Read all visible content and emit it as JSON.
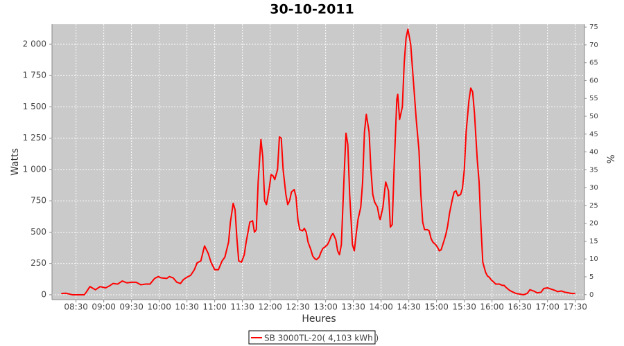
{
  "chart_data": {
    "type": "line",
    "title": "30-10-2011",
    "x_label": "Heures",
    "y_label": "Watts",
    "y2_label": "%",
    "x": [
      "08:14",
      "08:19",
      "08:26",
      "08:34",
      "08:39",
      "08:41",
      "08:45",
      "08:51",
      "08:56",
      "09:02",
      "09:06",
      "09:10",
      "09:15",
      "09:20",
      "09:25",
      "09:30",
      "09:35",
      "09:40",
      "09:45",
      "09:50",
      "09:55",
      "09:59",
      "10:02",
      "10:08",
      "10:11",
      "10:15",
      "10:19",
      "10:23",
      "10:26",
      "10:30",
      "10:34",
      "10:38",
      "10:41",
      "10:45",
      "10:49",
      "10:53",
      "10:56",
      "11:00",
      "11:04",
      "11:08",
      "11:11",
      "11:15",
      "11:17",
      "11:20",
      "11:22",
      "11:24",
      "11:26",
      "11:29",
      "11:32",
      "11:34",
      "11:36",
      "11:38",
      "11:41",
      "11:43",
      "11:45",
      "11:47",
      "11:50",
      "11:52",
      "11:54",
      "11:56",
      "11:59",
      "12:01",
      "12:03",
      "12:05",
      "12:08",
      "12:10",
      "12:12",
      "12:14",
      "12:17",
      "12:19",
      "12:21",
      "12:23",
      "12:26",
      "12:28",
      "12:30",
      "12:32",
      "12:35",
      "12:37",
      "12:39",
      "12:41",
      "12:44",
      "12:46",
      "12:48",
      "12:50",
      "12:53",
      "12:55",
      "12:57",
      "12:59",
      "13:02",
      "13:04",
      "13:06",
      "13:08",
      "13:11",
      "13:13",
      "13:15",
      "13:17",
      "13:20",
      "13:22",
      "13:24",
      "13:26",
      "13:29",
      "13:31",
      "13:33",
      "13:35",
      "13:38",
      "13:40",
      "13:42",
      "13:44",
      "13:47",
      "13:49",
      "13:51",
      "13:53",
      "13:56",
      "13:58",
      "13:59",
      "14:02",
      "14:04",
      "14:05",
      "14:08",
      "14:10",
      "14:12",
      "14:14",
      "14:17",
      "14:18",
      "14:20",
      "14:23",
      "14:25",
      "14:27",
      "14:29",
      "14:32",
      "14:34",
      "14:36",
      "14:38",
      "14:41",
      "14:43",
      "14:45",
      "14:47",
      "14:50",
      "14:52",
      "14:54",
      "14:56",
      "14:59",
      "15:01",
      "15:03",
      "15:05",
      "15:08",
      "15:10",
      "15:12",
      "15:14",
      "15:17",
      "15:19",
      "15:21",
      "15:23",
      "15:26",
      "15:28",
      "15:30",
      "15:32",
      "15:35",
      "15:37",
      "15:39",
      "15:41",
      "15:44",
      "15:46",
      "15:48",
      "15:50",
      "15:53",
      "15:55",
      "15:57",
      "15:59",
      "16:02",
      "16:04",
      "16:06",
      "16:08",
      "16:11",
      "16:13",
      "16:15",
      "16:19",
      "16:23",
      "16:26",
      "16:30",
      "16:34",
      "16:38",
      "16:41",
      "16:45",
      "16:49",
      "16:53",
      "16:56",
      "17:00",
      "17:04",
      "17:08",
      "17:11",
      "17:15",
      "17:19",
      "17:23",
      "17:26",
      "17:30"
    ],
    "series": [
      {
        "name": "SB 3000TL-20( 4,103 kWh )",
        "color": "#ff0000",
        "values": [
          10,
          12,
          0,
          0,
          0,
          20,
          65,
          40,
          65,
          55,
          70,
          90,
          85,
          110,
          95,
          100,
          100,
          80,
          85,
          85,
          130,
          145,
          135,
          130,
          145,
          135,
          100,
          90,
          120,
          140,
          155,
          200,
          255,
          270,
          390,
          330,
          260,
          200,
          200,
          270,
          300,
          420,
          580,
          730,
          680,
          450,
          270,
          260,
          320,
          420,
          500,
          580,
          590,
          500,
          520,
          900,
          1240,
          1100,
          750,
          720,
          850,
          960,
          950,
          920,
          1000,
          1260,
          1250,
          1000,
          800,
          720,
          750,
          820,
          840,
          780,
          600,
          520,
          510,
          530,
          500,
          420,
          360,
          310,
          290,
          280,
          300,
          340,
          370,
          380,
          400,
          430,
          470,
          490,
          440,
          350,
          320,
          400,
          950,
          1290,
          1200,
          800,
          400,
          350,
          480,
          600,
          700,
          900,
          1300,
          1440,
          1300,
          1000,
          800,
          740,
          700,
          620,
          600,
          700,
          840,
          900,
          830,
          540,
          560,
          1000,
          1560,
          1600,
          1400,
          1500,
          1850,
          2050,
          2120,
          2000,
          1800,
          1600,
          1400,
          1150,
          800,
          580,
          520,
          520,
          510,
          450,
          420,
          400,
          380,
          350,
          360,
          430,
          480,
          550,
          650,
          760,
          820,
          830,
          790,
          800,
          850,
          1000,
          1300,
          1550,
          1650,
          1620,
          1450,
          1080,
          900,
          550,
          260,
          180,
          150,
          140,
          120,
          100,
          85,
          85,
          85,
          75,
          75,
          60,
          35,
          20,
          10,
          5,
          0,
          10,
          40,
          30,
          15,
          20,
          50,
          55,
          45,
          35,
          25,
          30,
          20,
          15,
          10,
          10
        ]
      }
    ],
    "xlim": [
      "08:04",
      "17:40"
    ],
    "xticks": [
      "08:30",
      "09:00",
      "09:30",
      "10:00",
      "10:30",
      "11:00",
      "11:30",
      "12:00",
      "12:30",
      "13:00",
      "13:30",
      "14:00",
      "14:30",
      "15:00",
      "15:30",
      "16:00",
      "16:30",
      "17:00",
      "17:30"
    ],
    "ylim": [
      -39,
      2160
    ],
    "yticks": [
      0,
      250,
      500,
      750,
      {
        "value": 1000,
        "label": "1 000"
      },
      {
        "value": 1250,
        "label": "1 250"
      },
      {
        "value": 1500,
        "label": "1 500"
      },
      {
        "value": 1750,
        "label": "1 750"
      },
      {
        "value": 2000,
        "label": "2 000"
      }
    ],
    "y2lim": [
      -1.4,
      75.8
    ],
    "y2ticks": [
      0,
      5,
      10,
      15,
      20,
      25,
      30,
      35,
      40,
      45,
      50,
      55,
      60,
      65,
      70,
      75
    ],
    "grid": true,
    "legend": "bottom"
  }
}
